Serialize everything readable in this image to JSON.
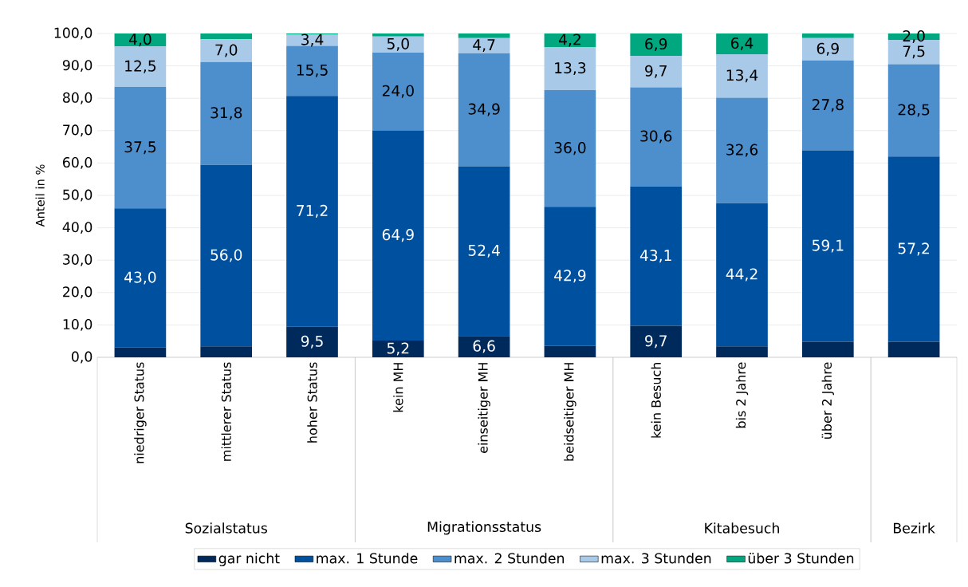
{
  "chart_data": {
    "type": "bar",
    "stacked": true,
    "ylabel": "Anteil in %",
    "categories": [
      "niedriger Status",
      "mittlerer Status",
      "hoher Status",
      "kein MH",
      "einseitiger MH",
      "beidseitiger MH",
      "kein Besuch",
      "bis 2 Jahre",
      "über 2 Jahre",
      null
    ],
    "annotations": [
      "Sozialstatus",
      "Migrationsstatus",
      "Kitabesuch",
      "Bezirk"
    ],
    "ylim": [
      0,
      100
    ],
    "yticks": [
      {
        "value": 0,
        "label": "0,0"
      },
      {
        "value": 10,
        "label": "10,0"
      },
      {
        "value": 20,
        "label": "20,0"
      },
      {
        "value": 30,
        "label": "30,0"
      },
      {
        "value": 40,
        "label": "40,0"
      },
      {
        "value": 50,
        "label": "50,0"
      },
      {
        "value": 60,
        "label": "60,0"
      },
      {
        "value": 70,
        "label": "70,0"
      },
      {
        "value": 80,
        "label": "80,0"
      },
      {
        "value": 90,
        "label": "90,0"
      },
      {
        "value": 100,
        "label": "100,0"
      }
    ],
    "grid": "y",
    "legend": "bottom",
    "series": [
      {
        "name": "gar nicht",
        "color": "#002a5c",
        "values": [
          3.0,
          3.4,
          9.5,
          5.2,
          6.6,
          3.6,
          9.7,
          3.4,
          4.8,
          4.8
        ],
        "value_labels": [
          null,
          null,
          "9,5",
          "5,2",
          "6,6",
          null,
          "9,7",
          null,
          null,
          null
        ]
      },
      {
        "name": "max. 1 Stunde",
        "color": "#0050a0",
        "values": [
          43.0,
          56.0,
          71.2,
          64.9,
          52.4,
          42.9,
          43.1,
          44.2,
          59.1,
          57.2
        ],
        "value_labels": [
          "43,0",
          "56,0",
          "71,2",
          "64,9",
          "52,4",
          "42,9",
          "43,1",
          "44,2",
          "59,1",
          "57,2"
        ]
      },
      {
        "name": "max. 2 Stunden",
        "color": "#4d8fcc",
        "values": [
          37.5,
          31.8,
          15.5,
          24.0,
          34.9,
          36.0,
          30.6,
          32.6,
          27.8,
          28.5
        ],
        "value_labels": [
          "37,5",
          "31,8",
          "15,5",
          "24,0",
          "34,9",
          "36,0",
          "30,6",
          "32,6",
          "27,8",
          "28,5"
        ]
      },
      {
        "name": "max. 3 Stunden",
        "color": "#a9c9e9",
        "values": [
          12.5,
          7.0,
          3.4,
          5.0,
          4.7,
          13.3,
          9.7,
          13.4,
          6.9,
          7.5
        ],
        "value_labels": [
          "12,5",
          "7,0",
          "3,4",
          "5,0",
          "4,7",
          "13,3",
          "9,7",
          "13,4",
          "6,9",
          "7,5"
        ]
      },
      {
        "name": "über 3 Stunden",
        "color": "#00a77f",
        "values": [
          4.0,
          1.8,
          0.4,
          0.9,
          1.4,
          4.2,
          6.9,
          6.4,
          1.4,
          2.0
        ],
        "value_labels": [
          "4,0",
          null,
          null,
          null,
          null,
          "4,2",
          "6,9",
          "6,4",
          null,
          "2,0"
        ]
      }
    ]
  }
}
